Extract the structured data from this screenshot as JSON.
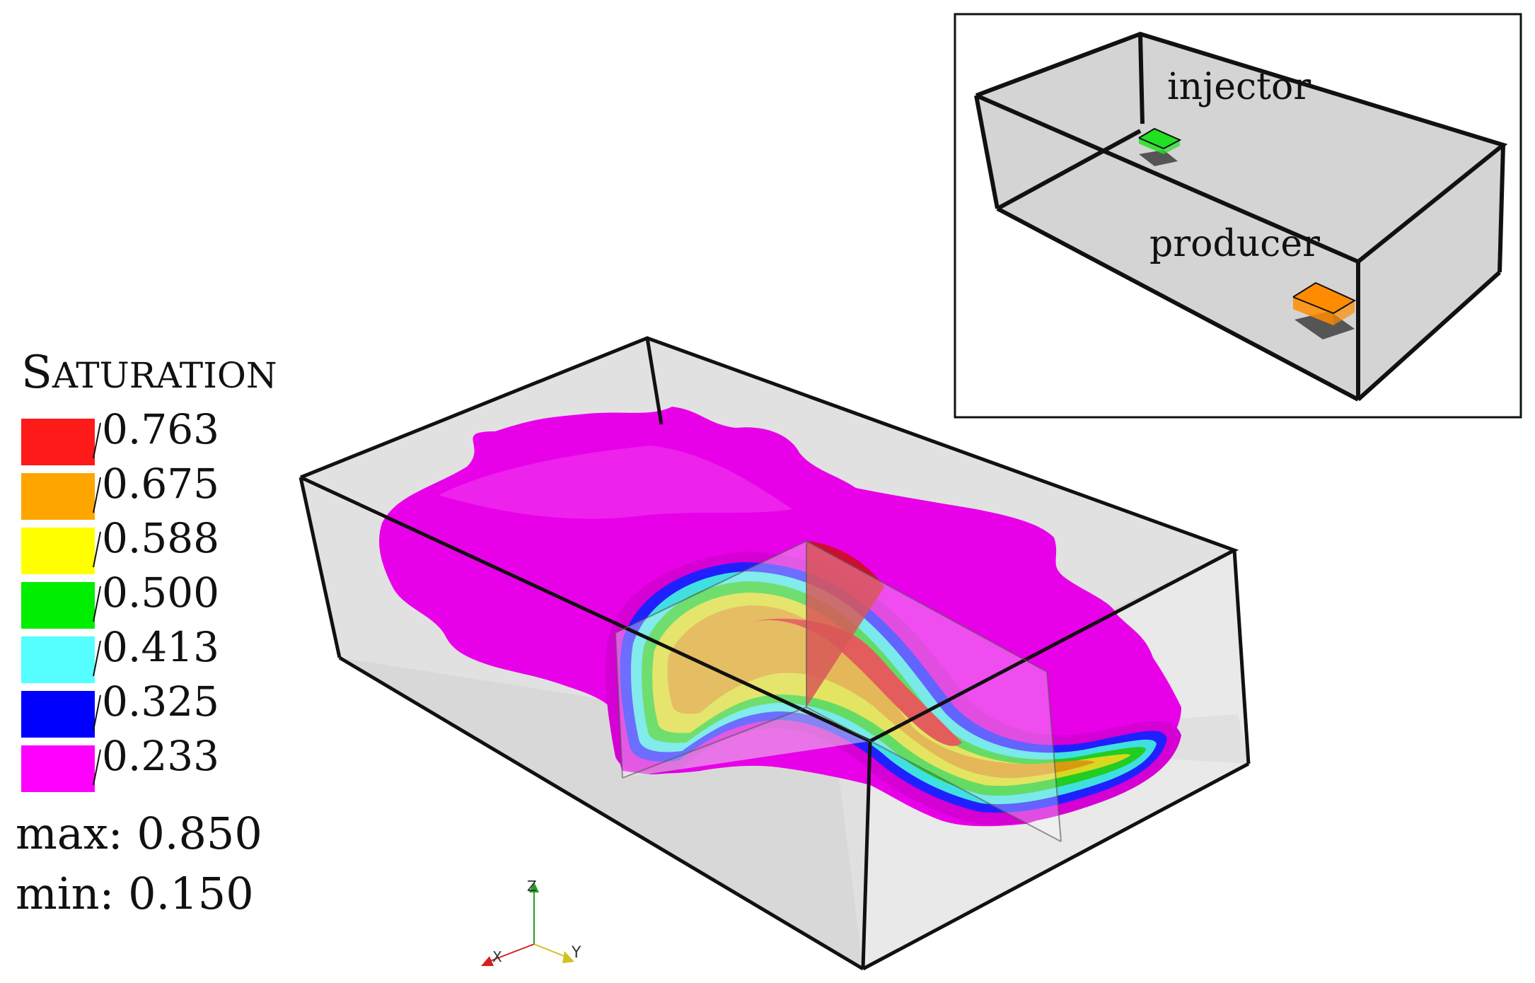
{
  "legend": {
    "title_initial": "S",
    "title_rest": "ATURATION",
    "entries": [
      {
        "label": "0.763",
        "color": "#ff1a1a"
      },
      {
        "label": "0.675",
        "color": "#ffa500"
      },
      {
        "label": "0.588",
        "color": "#ffff00"
      },
      {
        "label": "0.500",
        "color": "#00ee00"
      },
      {
        "label": "0.413",
        "color": "#55ffff"
      },
      {
        "label": "0.325",
        "color": "#0000ff"
      },
      {
        "label": "0.233",
        "color": "#ff00ff"
      }
    ]
  },
  "stats": {
    "max": "max: 0.850",
    "min": "min: 0.150"
  },
  "inset": {
    "injector_label": "injector",
    "producer_label": "producer",
    "injector_color": "#22e022",
    "producer_color": "#ff8c00"
  },
  "axes": {
    "x": "X",
    "y": "Y",
    "z": "Z",
    "x_color": "#d42020",
    "y_color": "#d4c020",
    "z_color": "#20a020"
  },
  "colors": {
    "box_fill": "#9a9a9a",
    "box_floor": "#d8d8d8"
  }
}
